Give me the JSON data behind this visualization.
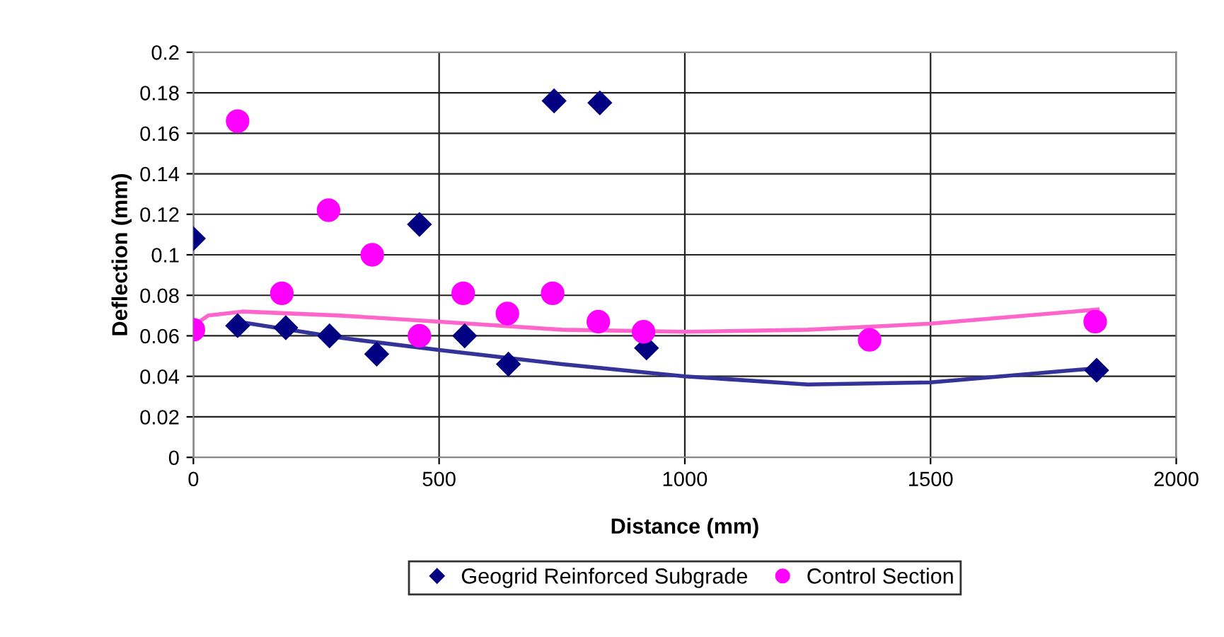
{
  "chart_data": {
    "type": "scatter",
    "xlabel": "Distance (mm)",
    "ylabel": "Deflection (mm)",
    "xlim": [
      0,
      2000
    ],
    "xticks": [
      0,
      500,
      1000,
      1500,
      2000
    ],
    "ylim": [
      0,
      0.2
    ],
    "yticks": [
      0,
      0.02,
      0.04,
      0.06,
      0.08,
      0.1,
      0.12,
      0.14,
      0.16,
      0.18,
      0.2
    ],
    "grid": true,
    "legend": "bottom",
    "series": [
      {
        "name": "Geogrid Reinforced Subgrade",
        "color": "#000080",
        "marker": "diamond",
        "x": [
          0,
          90,
          188,
          277,
          373,
          460,
          552,
          641,
          734,
          827,
          922,
          1838
        ],
        "values": [
          0.108,
          0.065,
          0.064,
          0.06,
          0.051,
          0.115,
          0.06,
          0.046,
          0.176,
          0.175,
          0.054,
          0.043
        ]
      },
      {
        "name": "Control Section",
        "color": "#ff00ff",
        "marker": "circle",
        "x": [
          0,
          90,
          180,
          275,
          364,
          460,
          549,
          639,
          731,
          824,
          916,
          1376,
          1835
        ],
        "values": [
          0.063,
          0.166,
          0.081,
          0.122,
          0.1,
          0.06,
          0.081,
          0.071,
          0.081,
          0.067,
          0.062,
          0.058,
          0.067
        ]
      },
      {
        "type": "line",
        "color": "#333399",
        "x": [
          90,
          300,
          500,
          750,
          1000,
          1250,
          1500,
          1838
        ],
        "values": [
          0.067,
          0.059,
          0.053,
          0.046,
          0.04,
          0.036,
          0.037,
          0.044
        ]
      },
      {
        "type": "line",
        "color": "#ff66cc",
        "x": [
          0,
          30,
          100,
          300,
          500,
          750,
          1000,
          1250,
          1500,
          1840
        ],
        "values": [
          0.065,
          0.07,
          0.072,
          0.07,
          0.067,
          0.063,
          0.062,
          0.063,
          0.066,
          0.073
        ]
      }
    ]
  }
}
